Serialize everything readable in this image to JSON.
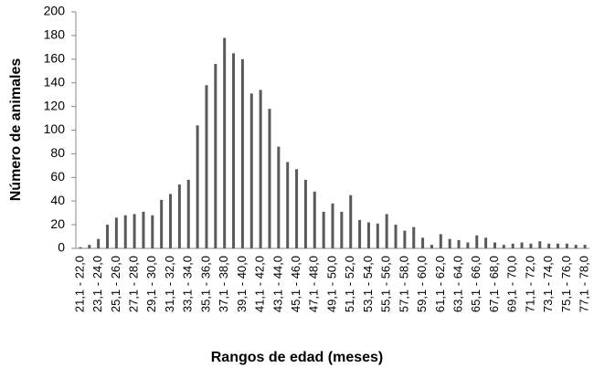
{
  "chart_data": {
    "type": "bar",
    "x_label": "Rangos de edad (meses)",
    "y_label": "Número de animales",
    "categories": [
      "21,1 - 22,0",
      null,
      "23,1 - 24,0",
      null,
      "25,1 - 26,0",
      null,
      "27,1 - 28,0",
      null,
      "29,1 - 30,0",
      null,
      "31,1 - 32,0",
      null,
      "33,1 - 34,0",
      null,
      "35,1 - 36,0",
      null,
      "37,1 - 38,0",
      null,
      "39,1 - 40,0",
      null,
      "41,1 - 42,0",
      null,
      "43,1 - 44,0",
      null,
      "45,1 - 46,0",
      null,
      "47,1 - 48,0",
      null,
      "49,1 - 50,0",
      null,
      "51,1 - 52,0",
      null,
      "53,1 - 54,0",
      null,
      "55,1 - 56,0",
      null,
      "57,1 - 58,0",
      null,
      "59,1 - 60,0",
      null,
      "61,1 - 62,0",
      null,
      "63,1 - 64,0",
      null,
      "65,1 - 66,0",
      null,
      "67,1 - 68,0",
      null,
      "69,1 - 70,0",
      null,
      "71,1 - 72,0",
      null,
      "73,1 - 74,0",
      null,
      "75,1 - 76,0",
      null,
      "77,1 - 78,0"
    ],
    "values": [
      1,
      3,
      8,
      20,
      26,
      28,
      29,
      31,
      28,
      41,
      46,
      54,
      58,
      104,
      138,
      156,
      178,
      165,
      160,
      131,
      134,
      118,
      86,
      73,
      67,
      58,
      48,
      31,
      38,
      31,
      45,
      24,
      22,
      21,
      29,
      20,
      15,
      18,
      9,
      3,
      12,
      8,
      7,
      5,
      11,
      9,
      5,
      3,
      4,
      5,
      4,
      6,
      4,
      4,
      4,
      3,
      3
    ],
    "color": "#595959",
    "ylim": [
      0,
      200
    ],
    "yticks": [
      0,
      20,
      40,
      60,
      80,
      100,
      120,
      140,
      160,
      180,
      200
    ],
    "grid": false
  }
}
